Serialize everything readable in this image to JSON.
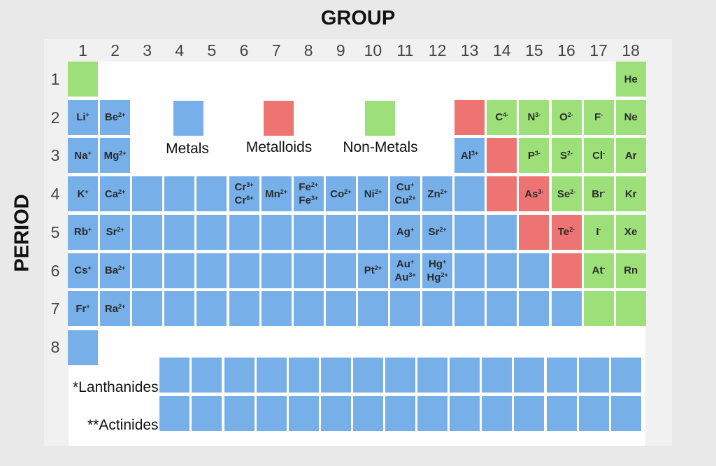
{
  "group_title": "GROUP",
  "period_title": "PERIOD",
  "group_numbers": [
    "1",
    "2",
    "3",
    "4",
    "5",
    "6",
    "7",
    "8",
    "9",
    "10",
    "11",
    "12",
    "13",
    "14",
    "15",
    "16",
    "17",
    "18"
  ],
  "period_numbers": [
    "1",
    "2",
    "3",
    "4",
    "5",
    "6",
    "7",
    "8"
  ],
  "legend": [
    {
      "label": "Metals",
      "category": "metal"
    },
    {
      "label": "Metalloids",
      "category": "metalloid"
    },
    {
      "label": "Non-Metals",
      "category": "nonmetal"
    }
  ],
  "series_labels": {
    "lanthanides": "*Lanthanides",
    "actinides": "**Actinides"
  },
  "colors": {
    "metal": "#77afe8",
    "metalloid": "#ee7373",
    "nonmetal": "#9de07a"
  },
  "cells": [
    {
      "group": 1,
      "period": 1,
      "category": "nonmetal",
      "ions": []
    },
    {
      "group": 18,
      "period": 1,
      "category": "nonmetal",
      "ions": [
        {
          "symbol": "He",
          "charge": ""
        }
      ]
    },
    {
      "group": 1,
      "period": 2,
      "category": "metal",
      "ions": [
        {
          "symbol": "Li",
          "charge": "+"
        }
      ]
    },
    {
      "group": 2,
      "period": 2,
      "category": "metal",
      "ions": [
        {
          "symbol": "Be",
          "charge": "2+"
        }
      ]
    },
    {
      "group": 13,
      "period": 2,
      "category": "metalloid",
      "ions": []
    },
    {
      "group": 14,
      "period": 2,
      "category": "nonmetal",
      "ions": [
        {
          "symbol": "C",
          "charge": "4-"
        }
      ]
    },
    {
      "group": 15,
      "period": 2,
      "category": "nonmetal",
      "ions": [
        {
          "symbol": "N",
          "charge": "3-"
        }
      ]
    },
    {
      "group": 16,
      "period": 2,
      "category": "nonmetal",
      "ions": [
        {
          "symbol": "O",
          "charge": "2-"
        }
      ]
    },
    {
      "group": 17,
      "period": 2,
      "category": "nonmetal",
      "ions": [
        {
          "symbol": "F",
          "charge": "-"
        }
      ]
    },
    {
      "group": 18,
      "period": 2,
      "category": "nonmetal",
      "ions": [
        {
          "symbol": "Ne",
          "charge": ""
        }
      ]
    },
    {
      "group": 1,
      "period": 3,
      "category": "metal",
      "ions": [
        {
          "symbol": "Na",
          "charge": "+"
        }
      ]
    },
    {
      "group": 2,
      "period": 3,
      "category": "metal",
      "ions": [
        {
          "symbol": "Mg",
          "charge": "2+"
        }
      ]
    },
    {
      "group": 13,
      "period": 3,
      "category": "metal",
      "ions": [
        {
          "symbol": "Al",
          "charge": "3+"
        }
      ]
    },
    {
      "group": 14,
      "period": 3,
      "category": "metalloid",
      "ions": []
    },
    {
      "group": 15,
      "period": 3,
      "category": "nonmetal",
      "ions": [
        {
          "symbol": "P",
          "charge": "3-"
        }
      ]
    },
    {
      "group": 16,
      "period": 3,
      "category": "nonmetal",
      "ions": [
        {
          "symbol": "S",
          "charge": "2-"
        }
      ]
    },
    {
      "group": 17,
      "period": 3,
      "category": "nonmetal",
      "ions": [
        {
          "symbol": "Cl",
          "charge": "-"
        }
      ]
    },
    {
      "group": 18,
      "period": 3,
      "category": "nonmetal",
      "ions": [
        {
          "symbol": "Ar",
          "charge": ""
        }
      ]
    },
    {
      "group": 1,
      "period": 4,
      "category": "metal",
      "ions": [
        {
          "symbol": "K",
          "charge": "+"
        }
      ]
    },
    {
      "group": 2,
      "period": 4,
      "category": "metal",
      "ions": [
        {
          "symbol": "Ca",
          "charge": "2+"
        }
      ]
    },
    {
      "group": 3,
      "period": 4,
      "category": "metal",
      "ions": []
    },
    {
      "group": 4,
      "period": 4,
      "category": "metal",
      "ions": []
    },
    {
      "group": 5,
      "period": 4,
      "category": "metal",
      "ions": []
    },
    {
      "group": 6,
      "period": 4,
      "category": "metal",
      "ions": [
        {
          "symbol": "Cr",
          "charge": "3+"
        },
        {
          "symbol": "Cr",
          "charge": "6+"
        }
      ]
    },
    {
      "group": 7,
      "period": 4,
      "category": "metal",
      "ions": [
        {
          "symbol": "Mn",
          "charge": "2+"
        }
      ]
    },
    {
      "group": 8,
      "period": 4,
      "category": "metal",
      "ions": [
        {
          "symbol": "Fe",
          "charge": "2+"
        },
        {
          "symbol": "Fe",
          "charge": "3+"
        }
      ]
    },
    {
      "group": 9,
      "period": 4,
      "category": "metal",
      "ions": [
        {
          "symbol": "Co",
          "charge": "2+"
        }
      ]
    },
    {
      "group": 10,
      "period": 4,
      "category": "metal",
      "ions": [
        {
          "symbol": "Ni",
          "charge": "2+"
        }
      ]
    },
    {
      "group": 11,
      "period": 4,
      "category": "metal",
      "ions": [
        {
          "symbol": "Cu",
          "charge": "+"
        },
        {
          "symbol": "Cu",
          "charge": "2+"
        }
      ]
    },
    {
      "group": 12,
      "period": 4,
      "category": "metal",
      "ions": [
        {
          "symbol": "Zn",
          "charge": "2+"
        }
      ]
    },
    {
      "group": 13,
      "period": 4,
      "category": "metal",
      "ions": []
    },
    {
      "group": 14,
      "period": 4,
      "category": "metalloid",
      "ions": []
    },
    {
      "group": 15,
      "period": 4,
      "category": "metalloid",
      "ions": [
        {
          "symbol": "As",
          "charge": "3-"
        }
      ]
    },
    {
      "group": 16,
      "period": 4,
      "category": "nonmetal",
      "ions": [
        {
          "symbol": "Se",
          "charge": "2-"
        }
      ]
    },
    {
      "group": 17,
      "period": 4,
      "category": "nonmetal",
      "ions": [
        {
          "symbol": "Br",
          "charge": "-"
        }
      ]
    },
    {
      "group": 18,
      "period": 4,
      "category": "nonmetal",
      "ions": [
        {
          "symbol": "Kr",
          "charge": ""
        }
      ]
    },
    {
      "group": 1,
      "period": 5,
      "category": "metal",
      "ions": [
        {
          "symbol": "Rb",
          "charge": "+"
        }
      ]
    },
    {
      "group": 2,
      "period": 5,
      "category": "metal",
      "ions": [
        {
          "symbol": "Sr",
          "charge": "2+"
        }
      ]
    },
    {
      "group": 3,
      "period": 5,
      "category": "metal",
      "ions": []
    },
    {
      "group": 4,
      "period": 5,
      "category": "metal",
      "ions": []
    },
    {
      "group": 5,
      "period": 5,
      "category": "metal",
      "ions": []
    },
    {
      "group": 6,
      "period": 5,
      "category": "metal",
      "ions": []
    },
    {
      "group": 7,
      "period": 5,
      "category": "metal",
      "ions": []
    },
    {
      "group": 8,
      "period": 5,
      "category": "metal",
      "ions": []
    },
    {
      "group": 9,
      "period": 5,
      "category": "metal",
      "ions": []
    },
    {
      "group": 10,
      "period": 5,
      "category": "metal",
      "ions": []
    },
    {
      "group": 11,
      "period": 5,
      "category": "metal",
      "ions": [
        {
          "symbol": "Ag",
          "charge": "+"
        }
      ]
    },
    {
      "group": 12,
      "period": 5,
      "category": "metal",
      "ions": [
        {
          "symbol": "Sr",
          "charge": "2+"
        }
      ]
    },
    {
      "group": 13,
      "period": 5,
      "category": "metal",
      "ions": []
    },
    {
      "group": 14,
      "period": 5,
      "category": "metal",
      "ions": []
    },
    {
      "group": 15,
      "period": 5,
      "category": "metalloid",
      "ions": []
    },
    {
      "group": 16,
      "period": 5,
      "category": "metalloid",
      "ions": [
        {
          "symbol": "Te",
          "charge": "2-"
        }
      ]
    },
    {
      "group": 17,
      "period": 5,
      "category": "nonmetal",
      "ions": [
        {
          "symbol": "I",
          "charge": "-"
        }
      ]
    },
    {
      "group": 18,
      "period": 5,
      "category": "nonmetal",
      "ions": [
        {
          "symbol": "Xe",
          "charge": ""
        }
      ]
    },
    {
      "group": 1,
      "period": 6,
      "category": "metal",
      "ions": [
        {
          "symbol": "Cs",
          "charge": "+"
        }
      ]
    },
    {
      "group": 2,
      "period": 6,
      "category": "metal",
      "ions": [
        {
          "symbol": "Ba",
          "charge": "2+"
        }
      ]
    },
    {
      "group": 3,
      "period": 6,
      "category": "metal",
      "ions": []
    },
    {
      "group": 4,
      "period": 6,
      "category": "metal",
      "ions": []
    },
    {
      "group": 5,
      "period": 6,
      "category": "metal",
      "ions": []
    },
    {
      "group": 6,
      "period": 6,
      "category": "metal",
      "ions": []
    },
    {
      "group": 7,
      "period": 6,
      "category": "metal",
      "ions": []
    },
    {
      "group": 8,
      "period": 6,
      "category": "metal",
      "ions": []
    },
    {
      "group": 9,
      "period": 6,
      "category": "metal",
      "ions": []
    },
    {
      "group": 10,
      "period": 6,
      "category": "metal",
      "ions": [
        {
          "symbol": "Pt",
          "charge": "2+"
        }
      ]
    },
    {
      "group": 11,
      "period": 6,
      "category": "metal",
      "ions": [
        {
          "symbol": "Au",
          "charge": "+"
        },
        {
          "symbol": "Au",
          "charge": "3+"
        }
      ]
    },
    {
      "group": 12,
      "period": 6,
      "category": "metal",
      "ions": [
        {
          "symbol": "Hg",
          "charge": "+"
        },
        {
          "symbol": "Hg",
          "charge": "2+"
        }
      ]
    },
    {
      "group": 13,
      "period": 6,
      "category": "metal",
      "ions": []
    },
    {
      "group": 14,
      "period": 6,
      "category": "metal",
      "ions": []
    },
    {
      "group": 15,
      "period": 6,
      "category": "metal",
      "ions": []
    },
    {
      "group": 16,
      "period": 6,
      "category": "metalloid",
      "ions": []
    },
    {
      "group": 17,
      "period": 6,
      "category": "nonmetal",
      "ions": [
        {
          "symbol": "At",
          "charge": "-"
        }
      ]
    },
    {
      "group": 18,
      "period": 6,
      "category": "nonmetal",
      "ions": [
        {
          "symbol": "Rn",
          "charge": ""
        }
      ]
    },
    {
      "group": 1,
      "period": 7,
      "category": "metal",
      "ions": [
        {
          "symbol": "Fr",
          "charge": "+"
        }
      ]
    },
    {
      "group": 2,
      "period": 7,
      "category": "metal",
      "ions": [
        {
          "symbol": "Ra",
          "charge": "2+"
        }
      ]
    },
    {
      "group": 3,
      "period": 7,
      "category": "metal",
      "ions": []
    },
    {
      "group": 4,
      "period": 7,
      "category": "metal",
      "ions": []
    },
    {
      "group": 5,
      "period": 7,
      "category": "metal",
      "ions": []
    },
    {
      "group": 6,
      "period": 7,
      "category": "metal",
      "ions": []
    },
    {
      "group": 7,
      "period": 7,
      "category": "metal",
      "ions": []
    },
    {
      "group": 8,
      "period": 7,
      "category": "metal",
      "ions": []
    },
    {
      "group": 9,
      "period": 7,
      "category": "metal",
      "ions": []
    },
    {
      "group": 10,
      "period": 7,
      "category": "metal",
      "ions": []
    },
    {
      "group": 11,
      "period": 7,
      "category": "metal",
      "ions": []
    },
    {
      "group": 12,
      "period": 7,
      "category": "metal",
      "ions": []
    },
    {
      "group": 13,
      "period": 7,
      "category": "metal",
      "ions": []
    },
    {
      "group": 14,
      "period": 7,
      "category": "metal",
      "ions": []
    },
    {
      "group": 15,
      "period": 7,
      "category": "metal",
      "ions": []
    },
    {
      "group": 16,
      "period": 7,
      "category": "metal",
      "ions": []
    },
    {
      "group": 17,
      "period": 7,
      "category": "nonmetal",
      "ions": []
    },
    {
      "group": 18,
      "period": 7,
      "category": "nonmetal",
      "ions": []
    },
    {
      "group": 1,
      "period": 8,
      "category": "metal",
      "ions": []
    }
  ]
}
